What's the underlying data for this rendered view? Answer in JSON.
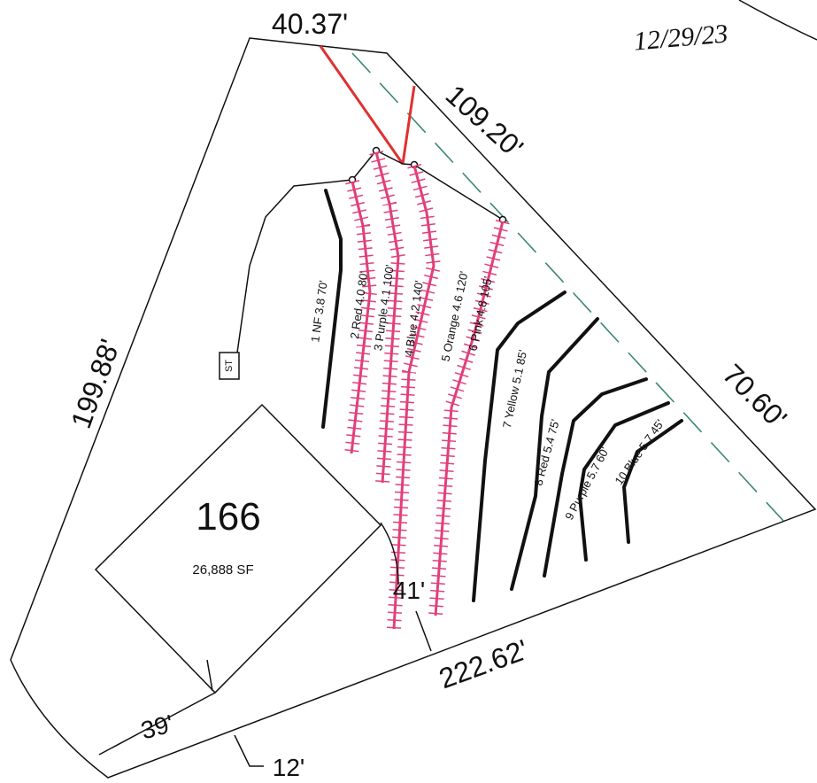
{
  "dimensions": {
    "top": "40.37'",
    "northeast": "109.20'",
    "east": "70.60'",
    "west": "199.88'",
    "south": "222.62'",
    "setback_front": "39'",
    "setback_side": "41'",
    "offset": "12'"
  },
  "lot": {
    "number": "166",
    "area": "26,888 SF"
  },
  "tank_label": "ST",
  "date": "12/29/23",
  "lines": [
    "1 NF 3.8 70'",
    "2 Red 4.0 80'",
    "3 Purple 4.1 100'",
    "4 Blue 4.2 140'",
    "5 Orange 4.6 120'",
    "6 Pink 4.8 105'",
    "7 Yellow 5.1 85'",
    "8 Red 5.4 75'",
    "9 Purple 5.7 60'",
    "10 Blue 5.7 45'"
  ]
}
